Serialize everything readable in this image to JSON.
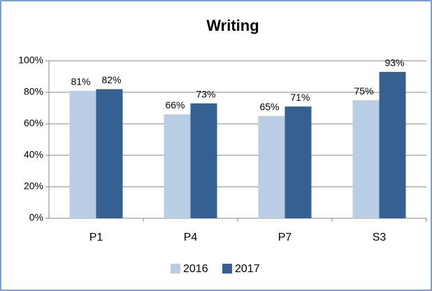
{
  "chart_data": {
    "type": "bar",
    "title": "Writing",
    "categories": [
      "P1",
      "P4",
      "P7",
      "S3"
    ],
    "series": [
      {
        "name": "2016",
        "color": "#b9cde5",
        "values": [
          81,
          66,
          65,
          75
        ],
        "value_labels": [
          "81%",
          "66%",
          "65%",
          "75%"
        ]
      },
      {
        "name": "2017",
        "color": "#376092",
        "values": [
          82,
          73,
          71,
          93
        ],
        "value_labels": [
          "82%",
          "73%",
          "71%",
          "93%"
        ]
      }
    ],
    "ylim": [
      0,
      100
    ],
    "yticks": [
      {
        "value": 0,
        "label": "0%"
      },
      {
        "value": 20,
        "label": "20%"
      },
      {
        "value": 40,
        "label": "40%"
      },
      {
        "value": 60,
        "label": "60%"
      },
      {
        "value": 80,
        "label": "80%"
      },
      {
        "value": 100,
        "label": "100%"
      }
    ],
    "grid": true,
    "legend": "bottom"
  }
}
